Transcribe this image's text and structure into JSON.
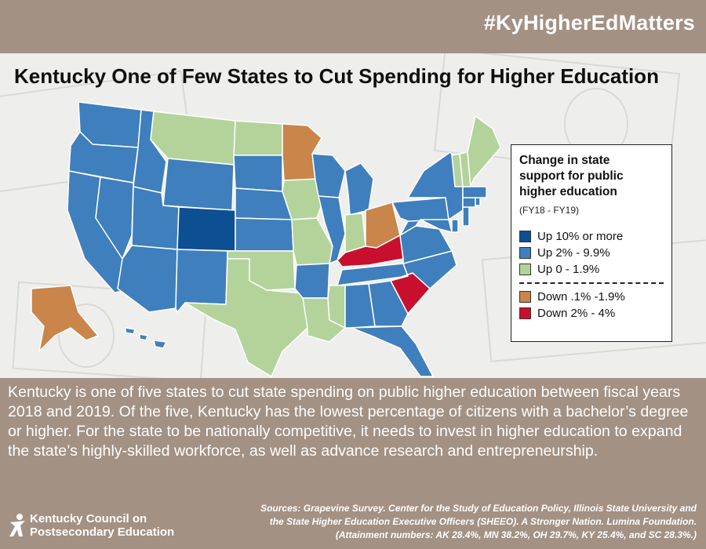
{
  "header": {
    "hashtag": "#KyHigherEdMatters"
  },
  "map": {
    "title": "Kentucky One of Few States to Cut Spending for Higher Education",
    "categories": {
      "up10": "#0c4f92",
      "up2": "#3f7fbd",
      "up0": "#b3d39b",
      "down_small": "#c9854a",
      "down2": "#c8102e"
    },
    "state_categories": {
      "CO": "up10",
      "WA": "up2",
      "OR": "up2",
      "CA": "up2",
      "NV": "up2",
      "ID": "up2",
      "UT": "up2",
      "AZ": "up2",
      "NM": "up2",
      "WY": "up2",
      "SD": "up2",
      "NE": "up2",
      "KS": "up2",
      "AR": "up2",
      "WI": "up2",
      "IL": "up2",
      "MI": "up2",
      "TN": "up2",
      "AL": "up2",
      "GA": "up2",
      "FL": "up2",
      "VA": "up2",
      "WV": "up2",
      "NC": "up2",
      "PA": "up2",
      "NY": "up2",
      "MD": "up2",
      "DE": "up2",
      "NJ": "up2",
      "MA": "up2",
      "CT": "up2",
      "RI": "up2",
      "HI": "up2",
      "MT": "up0",
      "ND": "up0",
      "IA": "up0",
      "MO": "up0",
      "OK": "up0",
      "TX": "up0",
      "LA": "up0",
      "MS": "up0",
      "IN": "up0",
      "VT": "up0",
      "NH": "up0",
      "ME": "up0",
      "MN": "down_small",
      "OH": "down_small",
      "AK": "down_small",
      "KY": "down2",
      "SC": "down2"
    }
  },
  "legend": {
    "title": "Change in state support for public higher education",
    "subtitle": "(FY18 - FY19)",
    "items": [
      {
        "label": "Up 10% or more",
        "color": "#0c4f92"
      },
      {
        "label": "Up 2% - 9.9%",
        "color": "#3f7fbd"
      },
      {
        "label": "Up 0 - 1.9%",
        "color": "#b3d39b"
      }
    ],
    "items_down": [
      {
        "label": "Down .1% -1.9%",
        "color": "#c9854a"
      },
      {
        "label": "Down 2% - 4%",
        "color": "#c8102e"
      }
    ]
  },
  "body": {
    "text": "Kentucky is one of five states to cut state spending on public higher education between fiscal years 2018 and 2019. Of the five, Kentucky has the lowest percentage of citizens with a bachelor’s degree or higher. For the state to be nationally competitive, it needs to invest in higher education to expand the state’s highly-skilled workforce, as well as advance research and entrepreneurship."
  },
  "sources": {
    "line1": "Sources: Grapevine Survey. Center for the Study of Education Policy, Illinois State University and",
    "line2": "the State Higher Education Executive Officers (SHEEO). A Stronger Nation. Lumina Foundation.",
    "line3": "(Attainment numbers: AK 28.4%, MN 38.2%, OH 29.7%, KY 25.4%, and SC 28.3%.)"
  },
  "logo": {
    "line1": "Kentucky Council on",
    "line2": "Postsecondary Education"
  }
}
